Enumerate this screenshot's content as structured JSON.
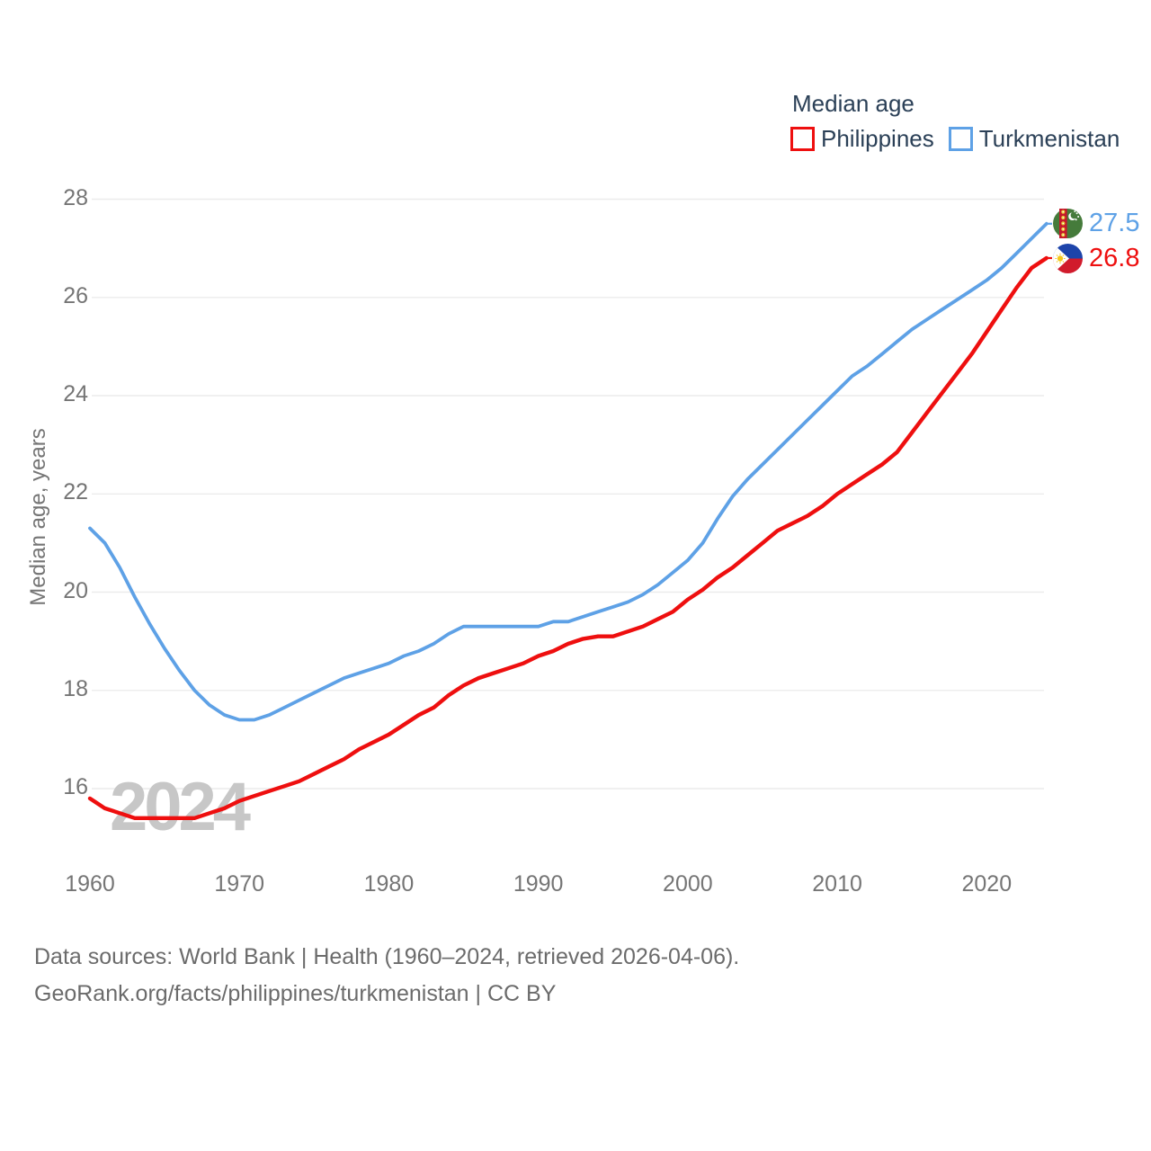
{
  "legend": {
    "title": "Median age",
    "items": [
      {
        "label": "Philippines",
        "color": "#ee0f0f"
      },
      {
        "label": "Turkmenistan",
        "color": "#5ea1e6"
      }
    ]
  },
  "watermark": "2024",
  "end_labels": [
    {
      "series": "Turkmenistan",
      "value": "27.5",
      "color": "#5ea1e6",
      "icon": "turkmenistan-flag-icon"
    },
    {
      "series": "Philippines",
      "value": "26.8",
      "color": "#ee0f0f",
      "icon": "philippines-flag-icon"
    }
  ],
  "footer": {
    "line1": "Data sources: World Bank | Health (1960–2024, retrieved 2026-04-06).",
    "line2": "GeoRank.org/facts/philippines/turkmenistan | CC BY"
  },
  "chart_data": {
    "type": "line",
    "title": "Median age",
    "ylabel": "Median age, years",
    "x_start": 1960,
    "x_end": 2024,
    "x_step": 1,
    "xticks": [
      1960,
      1970,
      1980,
      1990,
      2000,
      2010,
      2020
    ],
    "yticks": [
      16,
      18,
      20,
      22,
      24,
      26,
      28
    ],
    "ylim": [
      15.2,
      28.2
    ],
    "grid": "horizontal",
    "legend_position": "top-right",
    "series": [
      {
        "name": "Turkmenistan",
        "color": "#5ea1e6",
        "end_value": 27.5,
        "values": [
          21.3,
          21.0,
          20.5,
          19.9,
          19.35,
          18.85,
          18.4,
          18.0,
          17.7,
          17.5,
          17.4,
          17.4,
          17.5,
          17.65,
          17.8,
          17.95,
          18.1,
          18.25,
          18.35,
          18.45,
          18.55,
          18.7,
          18.8,
          18.95,
          19.15,
          19.3,
          19.3,
          19.3,
          19.3,
          19.3,
          19.3,
          19.4,
          19.4,
          19.5,
          19.6,
          19.7,
          19.8,
          19.95,
          20.15,
          20.4,
          20.65,
          21.0,
          21.5,
          21.95,
          22.3,
          22.6,
          22.9,
          23.2,
          23.5,
          23.8,
          24.1,
          24.4,
          24.6,
          24.85,
          25.1,
          25.35,
          25.55,
          25.75,
          25.95,
          26.15,
          26.35,
          26.6,
          26.9,
          27.2,
          27.5
        ]
      },
      {
        "name": "Philippines",
        "color": "#ee0f0f",
        "end_value": 26.8,
        "values": [
          15.8,
          15.6,
          15.5,
          15.4,
          15.4,
          15.4,
          15.4,
          15.4,
          15.5,
          15.6,
          15.75,
          15.85,
          15.95,
          16.05,
          16.15,
          16.3,
          16.45,
          16.6,
          16.8,
          16.95,
          17.1,
          17.3,
          17.5,
          17.65,
          17.9,
          18.1,
          18.25,
          18.35,
          18.45,
          18.55,
          18.7,
          18.8,
          18.95,
          19.05,
          19.1,
          19.1,
          19.2,
          19.3,
          19.45,
          19.6,
          19.85,
          20.05,
          20.3,
          20.5,
          20.75,
          21.0,
          21.25,
          21.4,
          21.55,
          21.75,
          22.0,
          22.2,
          22.4,
          22.6,
          22.85,
          23.25,
          23.65,
          24.05,
          24.45,
          24.85,
          25.3,
          25.75,
          26.2,
          26.6,
          26.8
        ]
      }
    ]
  }
}
